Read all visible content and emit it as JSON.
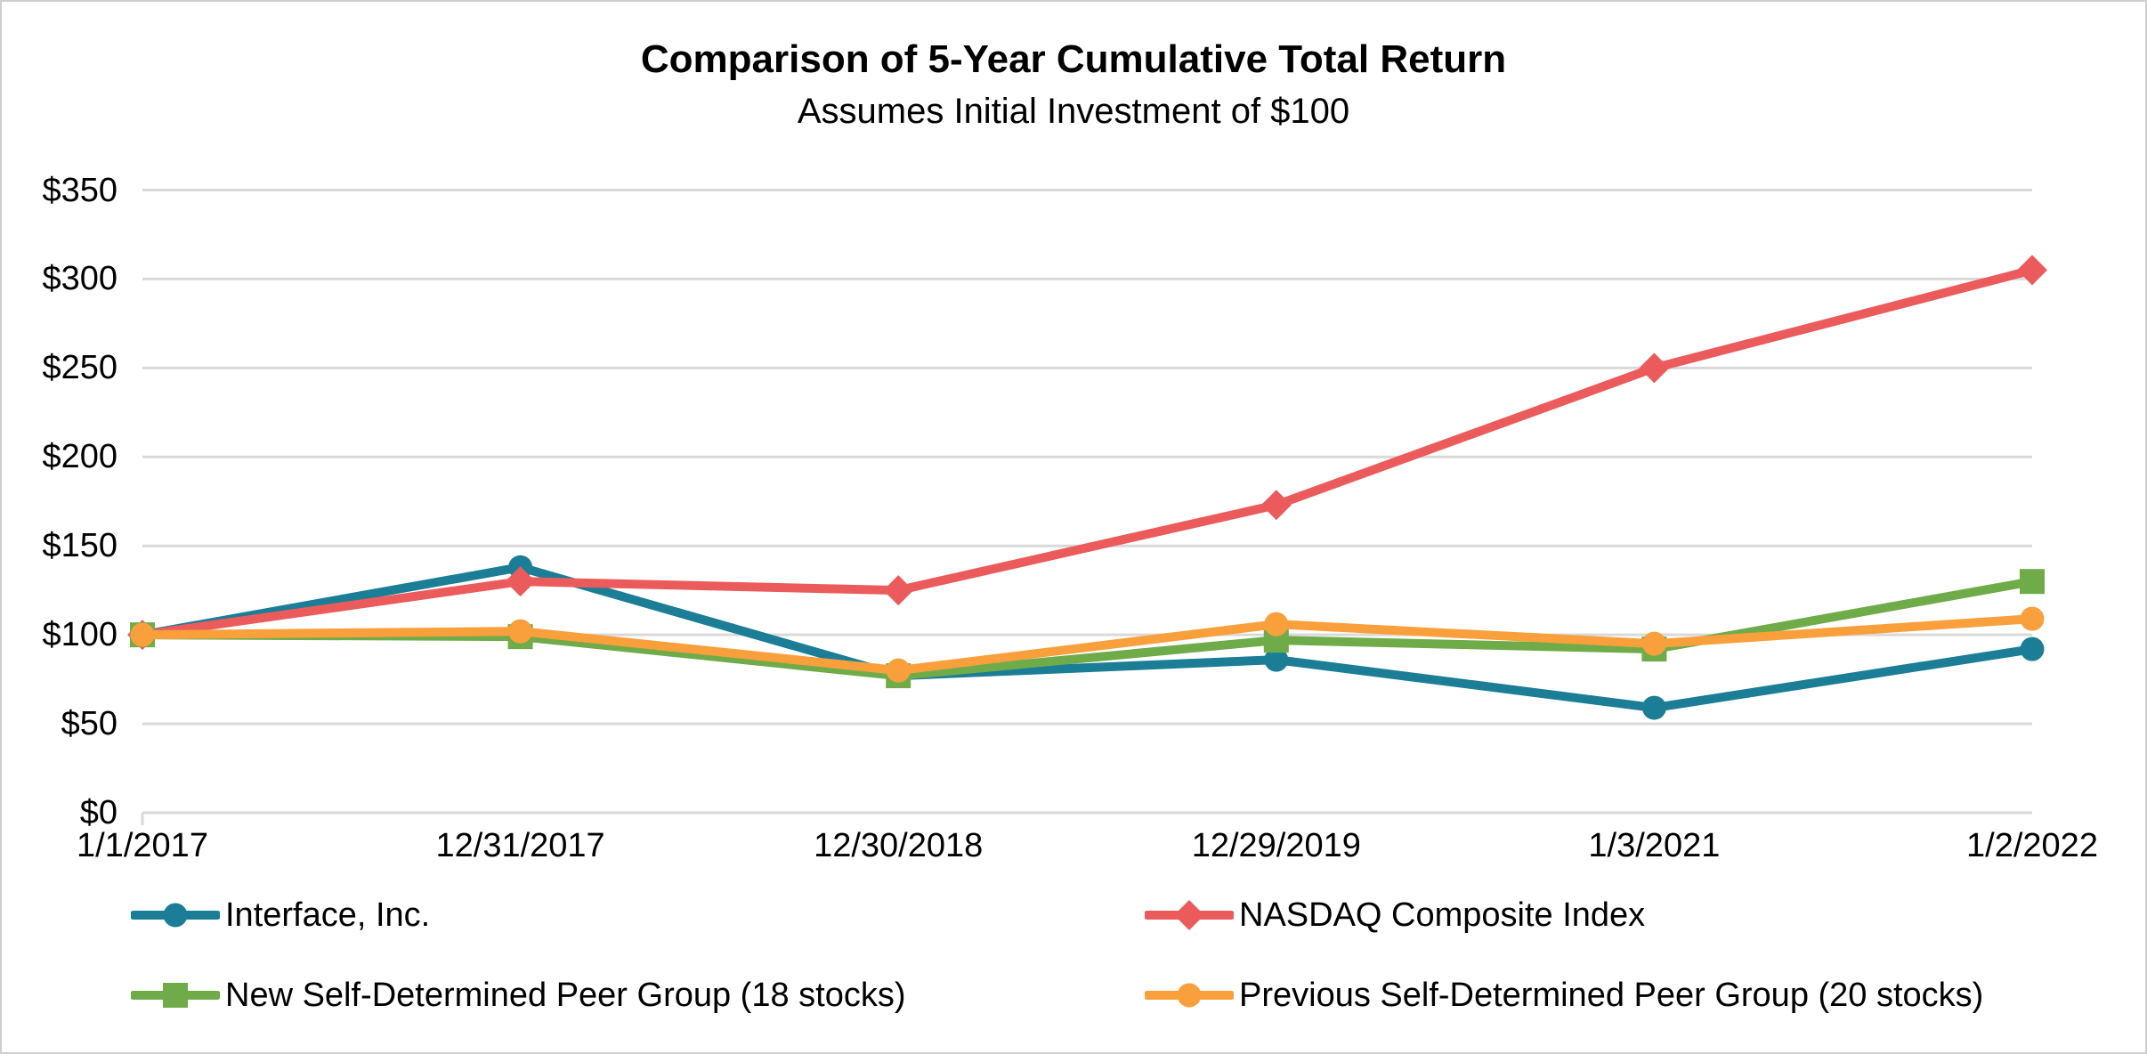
{
  "frame": {
    "background": "#ffffff",
    "border_color": "#cfcfcf"
  },
  "chart_data": {
    "type": "line",
    "title": "Comparison of 5-Year Cumulative Total Return",
    "subtitle": "Assumes Initial Investment of $100",
    "categories": [
      "1/1/2017",
      "12/31/2017",
      "12/30/2018",
      "12/29/2019",
      "1/3/2021",
      "1/2/2022"
    ],
    "series": [
      {
        "name": "Interface, Inc.",
        "marker": "circle",
        "color": "#1B7E96",
        "values": [
          100,
          138,
          77,
          86,
          59,
          92
        ]
      },
      {
        "name": "NASDAQ Composite Index",
        "marker": "diamond",
        "color": "#EC5B5B",
        "values": [
          100,
          130,
          125,
          173,
          250,
          305
        ]
      },
      {
        "name": "New Self-Determined Peer Group (18 stocks)",
        "marker": "square",
        "color": "#6FAC49",
        "values": [
          100,
          99,
          77,
          97,
          92,
          130
        ]
      },
      {
        "name": "Previous Self-Determined Peer Group (20 stocks)",
        "marker": "circle",
        "color": "#F9A03C",
        "values": [
          100,
          102,
          80,
          106,
          95,
          109
        ]
      }
    ],
    "ylim": [
      0,
      350
    ],
    "ytick_step": 50,
    "ytick_labels": [
      "$0",
      "$50",
      "$100",
      "$150",
      "$200",
      "$250",
      "$300",
      "$350"
    ],
    "grid": "horizontal",
    "gridline_color": "#D9D9D9",
    "legend_position": "bottom-two-rows-two-columns"
  }
}
